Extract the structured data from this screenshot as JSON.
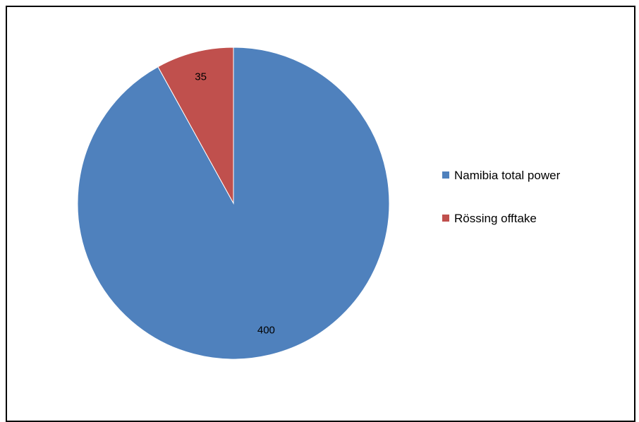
{
  "chart_data": {
    "type": "pie",
    "categories": [
      "Namibia total power",
      "Rössing offtake"
    ],
    "values": [
      400,
      35
    ],
    "data_labels": [
      "400",
      "35"
    ],
    "colors": [
      "#4F81BD",
      "#C0504D"
    ],
    "legend_position": "right",
    "start_angle_deg": 0,
    "direction": "clockwise"
  }
}
